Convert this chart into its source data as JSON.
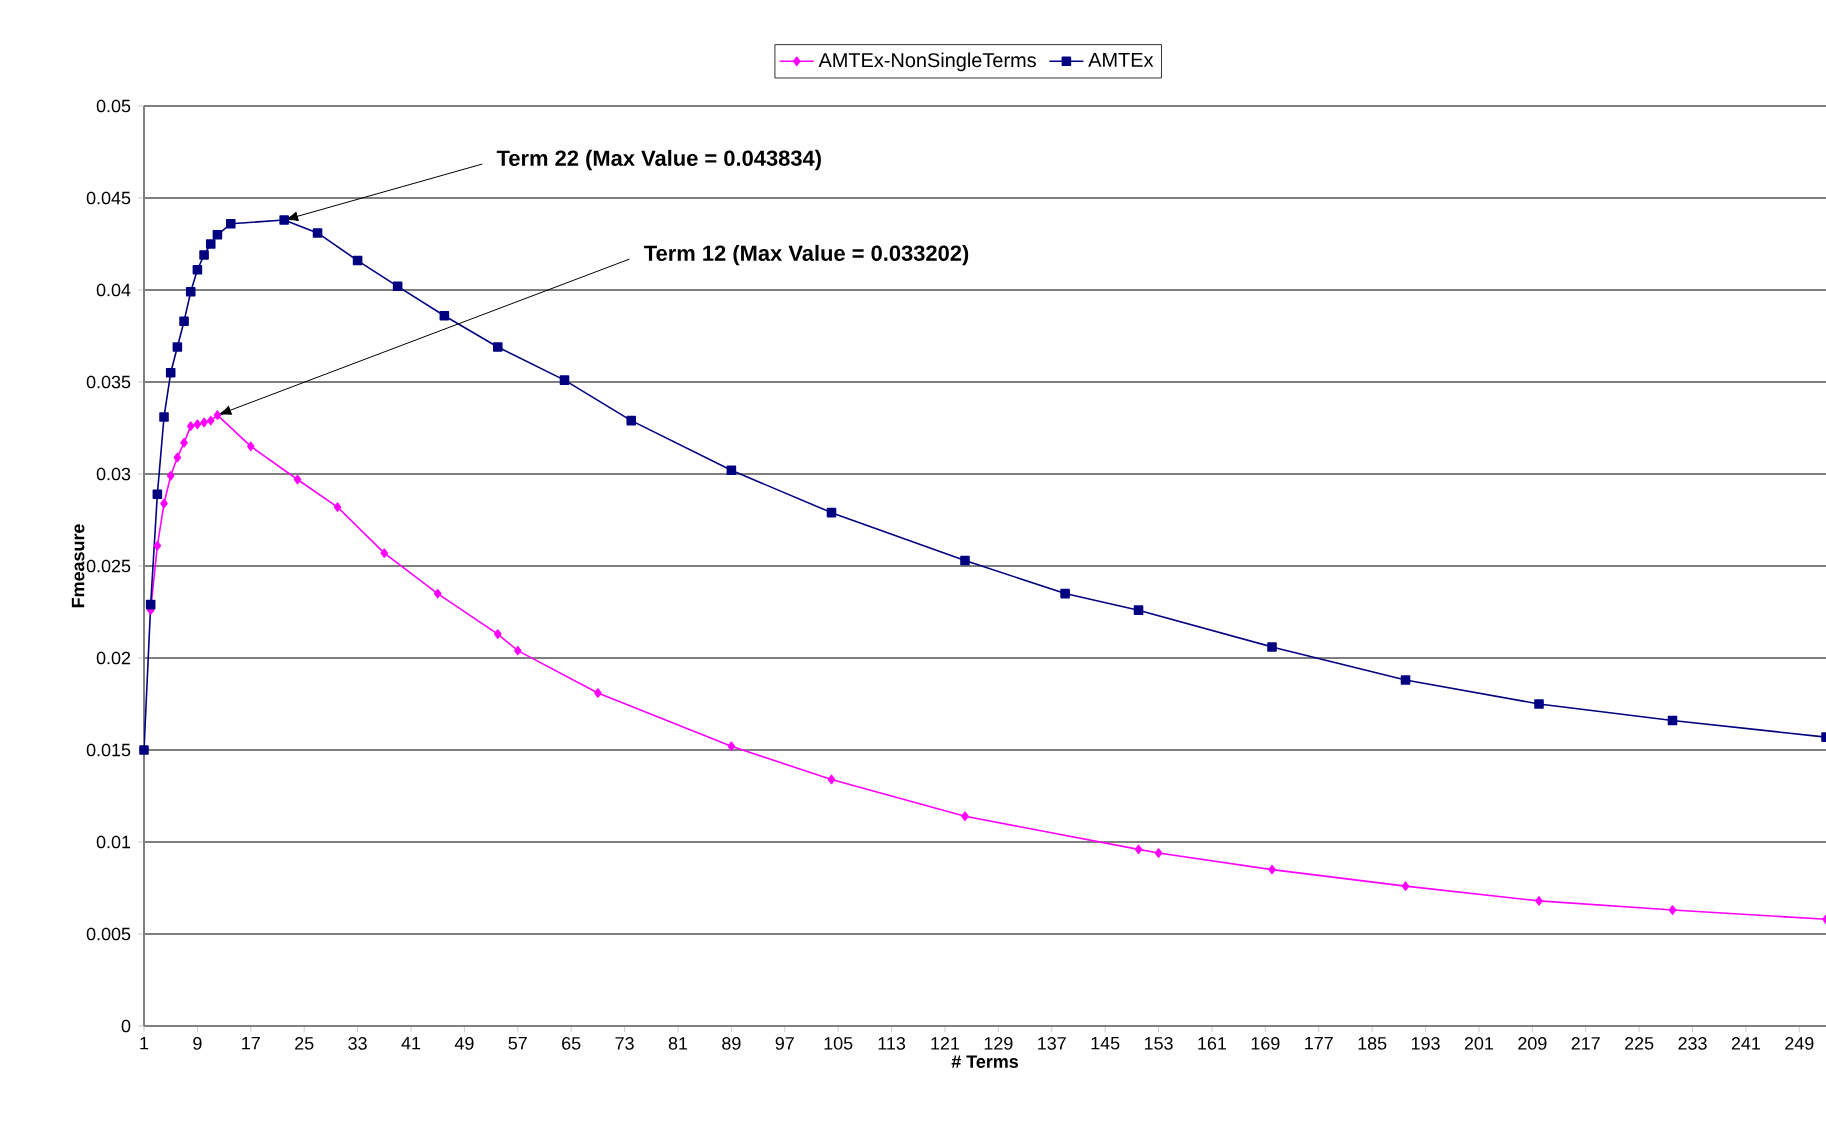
{
  "chart_data": {
    "type": "line",
    "xlabel": "# Terms",
    "ylabel": "Fmeasure",
    "xlim": [
      1,
      253
    ],
    "ylim": [
      0,
      0.05
    ],
    "xticks": [
      1,
      9,
      17,
      25,
      33,
      41,
      49,
      57,
      65,
      73,
      81,
      89,
      97,
      105,
      113,
      121,
      129,
      137,
      145,
      153,
      161,
      169,
      177,
      185,
      193,
      201,
      209,
      217,
      225,
      233,
      241,
      249
    ],
    "yticks": [
      0,
      0.005,
      0.01,
      0.015,
      0.02,
      0.025,
      0.03,
      0.035,
      0.04,
      0.045,
      0.05
    ],
    "grid": "y",
    "legend": "top",
    "line_style": "solid",
    "series": [
      {
        "name": "AMTEx-NonSingleTerms",
        "color": "#ff00ff",
        "marker": "diamond",
        "x": [
          2,
          3,
          4,
          5,
          6,
          7,
          8,
          9,
          10,
          11,
          12,
          17,
          24,
          30,
          37,
          45,
          54,
          57,
          69,
          89,
          104,
          124,
          150,
          153,
          170,
          190,
          210,
          230,
          253
        ],
        "values": [
          0.0226,
          0.0261,
          0.0284,
          0.0299,
          0.0309,
          0.0317,
          0.0326,
          0.0327,
          0.0328,
          0.0329,
          0.0332,
          0.0315,
          0.0297,
          0.0282,
          0.0257,
          0.0235,
          0.0213,
          0.0204,
          0.0181,
          0.0152,
          0.0134,
          0.0114,
          0.0096,
          0.0094,
          0.0085,
          0.0076,
          0.0068,
          0.0063,
          0.0058
        ]
      },
      {
        "name": "AMTEx",
        "color": "#000080",
        "marker": "square",
        "x": [
          1,
          2,
          3,
          4,
          5,
          6,
          7,
          8,
          9,
          10,
          11,
          12,
          14,
          22,
          27,
          33,
          39,
          46,
          54,
          64,
          74,
          89,
          104,
          124,
          139,
          150,
          170,
          190,
          210,
          230,
          253
        ],
        "values": [
          0.015,
          0.0229,
          0.0289,
          0.0331,
          0.0355,
          0.0369,
          0.0383,
          0.0399,
          0.0411,
          0.0419,
          0.0425,
          0.043,
          0.0436,
          0.0438,
          0.0431,
          0.0416,
          0.0402,
          0.0386,
          0.0369,
          0.0351,
          0.0329,
          0.0302,
          0.0279,
          0.0253,
          0.0235,
          0.0226,
          0.0206,
          0.0188,
          0.0175,
          0.0166,
          0.0157
        ]
      }
    ],
    "annotations": [
      {
        "text": "**Term 22  (Max Value = 0.043834)**",
        "x": 22,
        "y": 0.0438
      },
      {
        "text": "**Term 12  (Max Value = 0.033202)**",
        "x": 12,
        "y": 0.0332
      }
    ]
  }
}
